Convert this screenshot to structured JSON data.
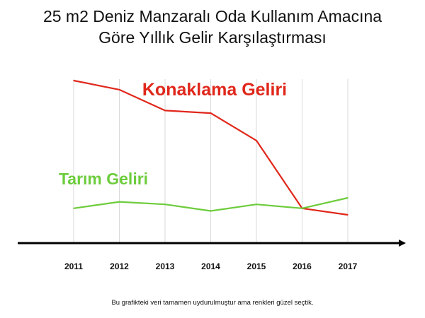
{
  "chart_data": {
    "type": "line",
    "title_lines": [
      "25 m2 Deniz Manzaralı Oda Kullanım Amacına",
      "Göre Yıllık Gelir Karşılaştırması"
    ],
    "categories": [
      "2011",
      "2012",
      "2013",
      "2014",
      "2015",
      "2016",
      "2017"
    ],
    "series": [
      {
        "name": "Konaklama Geliri",
        "color": "#e0271b",
        "values": [
          100,
          93,
          77,
          75,
          54,
          2,
          -3
        ]
      },
      {
        "name": "Tarım Geliri",
        "color": "#6dcc3c",
        "values": [
          2,
          7,
          5,
          0,
          5,
          2,
          10
        ]
      }
    ],
    "ylim": [
      -10,
      105
    ],
    "grid": "vertical",
    "axis_color": "#000000",
    "grid_color": "#d9d9d9"
  },
  "footnote": "Bu grafikteki veri tamamen uydurulmuştur ama renkleri güzel seçtik."
}
